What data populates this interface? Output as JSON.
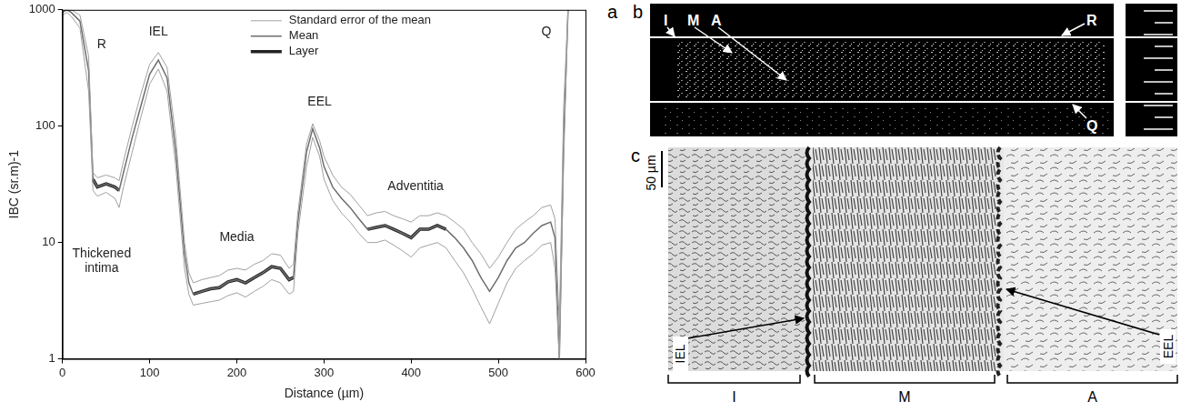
{
  "chart_data": {
    "type": "line",
    "panel": "a",
    "x_label": "Distance (µm)",
    "y_label": "IBC (sr.m)-1",
    "log": "y",
    "grid": false,
    "legend": "top",
    "xlim": [
      0,
      600
    ],
    "xticks": [
      0,
      100,
      200,
      300,
      400,
      500,
      600
    ],
    "ylim": [
      1,
      1000
    ],
    "yticks": [
      1,
      10,
      100,
      1000
    ],
    "x": [
      0,
      5,
      10,
      20,
      30,
      35,
      40,
      50,
      60,
      65,
      70,
      80,
      90,
      100,
      110,
      120,
      130,
      140,
      145,
      150,
      160,
      170,
      180,
      190,
      200,
      210,
      220,
      230,
      240,
      250,
      260,
      265,
      270,
      280,
      287,
      295,
      300,
      310,
      320,
      330,
      340,
      350,
      360,
      370,
      380,
      390,
      400,
      410,
      420,
      430,
      440,
      450,
      460,
      470,
      480,
      490,
      500,
      510,
      520,
      530,
      540,
      550,
      560,
      565,
      570,
      575,
      580
    ],
    "series": [
      {
        "name": "Standard error of the mean",
        "color": "#a0a0a0",
        "line_style": "solid",
        "upper": [
          1000,
          1000,
          1000,
          900,
          400,
          40,
          36,
          38,
          36,
          34,
          50,
          100,
          190,
          340,
          430,
          320,
          80,
          10,
          5.5,
          4.5,
          4.8,
          5,
          5.2,
          5.8,
          6,
          5.8,
          6.5,
          7,
          8,
          7.8,
          6,
          6.5,
          18,
          70,
          105,
          75,
          55,
          38,
          30,
          26,
          21,
          17,
          18,
          18.5,
          17,
          16,
          15,
          17,
          17,
          18,
          17,
          15,
          13,
          10,
          8,
          6,
          7.5,
          10,
          13,
          15,
          17,
          20,
          21,
          16,
          2,
          150,
          1000
        ],
        "lower": [
          900,
          950,
          880,
          700,
          200,
          28,
          25,
          27,
          24,
          20,
          30,
          60,
          120,
          230,
          310,
          200,
          45,
          6,
          3.6,
          2.9,
          3,
          3.1,
          3.2,
          3.5,
          3.7,
          3.4,
          3.8,
          4.2,
          4.8,
          4.5,
          3.6,
          3.8,
          12,
          45,
          80,
          55,
          35,
          23,
          18,
          15,
          12,
          10,
          10,
          10.5,
          9.5,
          8.5,
          7.5,
          9,
          9.5,
          10,
          9,
          7,
          5.5,
          4,
          2.8,
          2,
          3,
          4.5,
          6,
          7,
          8,
          9.5,
          10,
          6,
          1,
          50,
          1000
        ]
      },
      {
        "name": "Mean",
        "color": "#6e6e6e",
        "line_style": "solid",
        "values": [
          950,
          1000,
          950,
          800,
          300,
          35,
          30,
          32,
          30,
          28,
          40,
          80,
          150,
          280,
          370,
          260,
          60,
          8,
          4.5,
          3.6,
          3.8,
          4,
          4.1,
          4.6,
          4.8,
          4.5,
          5,
          5.5,
          6.2,
          6,
          4.8,
          5,
          15,
          60,
          95,
          65,
          45,
          30,
          24,
          20,
          16,
          13,
          13.5,
          14,
          13,
          12,
          11,
          13,
          13,
          14,
          13,
          11,
          9,
          7,
          5,
          3.8,
          5,
          7,
          9,
          10,
          12,
          14,
          15,
          11,
          1,
          80,
          1000
        ]
      },
      {
        "name": "Layer",
        "color": "#222222",
        "line_style": "solid",
        "values": [
          null,
          null,
          null,
          null,
          null,
          35,
          30,
          32,
          30,
          28,
          null,
          null,
          null,
          null,
          null,
          null,
          null,
          null,
          null,
          3.6,
          3.8,
          4,
          4.1,
          4.6,
          4.8,
          4.5,
          5,
          5.5,
          6.2,
          6,
          4.8,
          5,
          null,
          null,
          null,
          null,
          null,
          null,
          null,
          null,
          null,
          13,
          13.5,
          14,
          13,
          12,
          11,
          13,
          13,
          14,
          13,
          null,
          null,
          null,
          null,
          null,
          null,
          null,
          null,
          null,
          null,
          null,
          null,
          null,
          null,
          null,
          null
        ]
      }
    ],
    "annotations": [
      {
        "text": "R",
        "x": 45,
        "y": 500
      },
      {
        "text": "IEL",
        "x": 110,
        "y": 650
      },
      {
        "text": "EEL",
        "x": 295,
        "y": 160
      },
      {
        "text": "Q",
        "x": 555,
        "y": 650
      },
      {
        "text": "Media",
        "x": 200,
        "y": 11
      },
      {
        "text": "Adventitia",
        "x": 405,
        "y": 30
      },
      {
        "text": "Thickened intima",
        "x": 45,
        "y": 8
      }
    ]
  },
  "panels": [
    {
      "letter": "b",
      "labels": [
        "I",
        "M",
        "A",
        "R",
        "Q"
      ]
    },
    {
      "letter": "c",
      "scale_bar": "50 µm",
      "boundaries": [
        "IEL",
        "EEL"
      ],
      "layers": [
        "I",
        "M",
        "A"
      ]
    }
  ]
}
